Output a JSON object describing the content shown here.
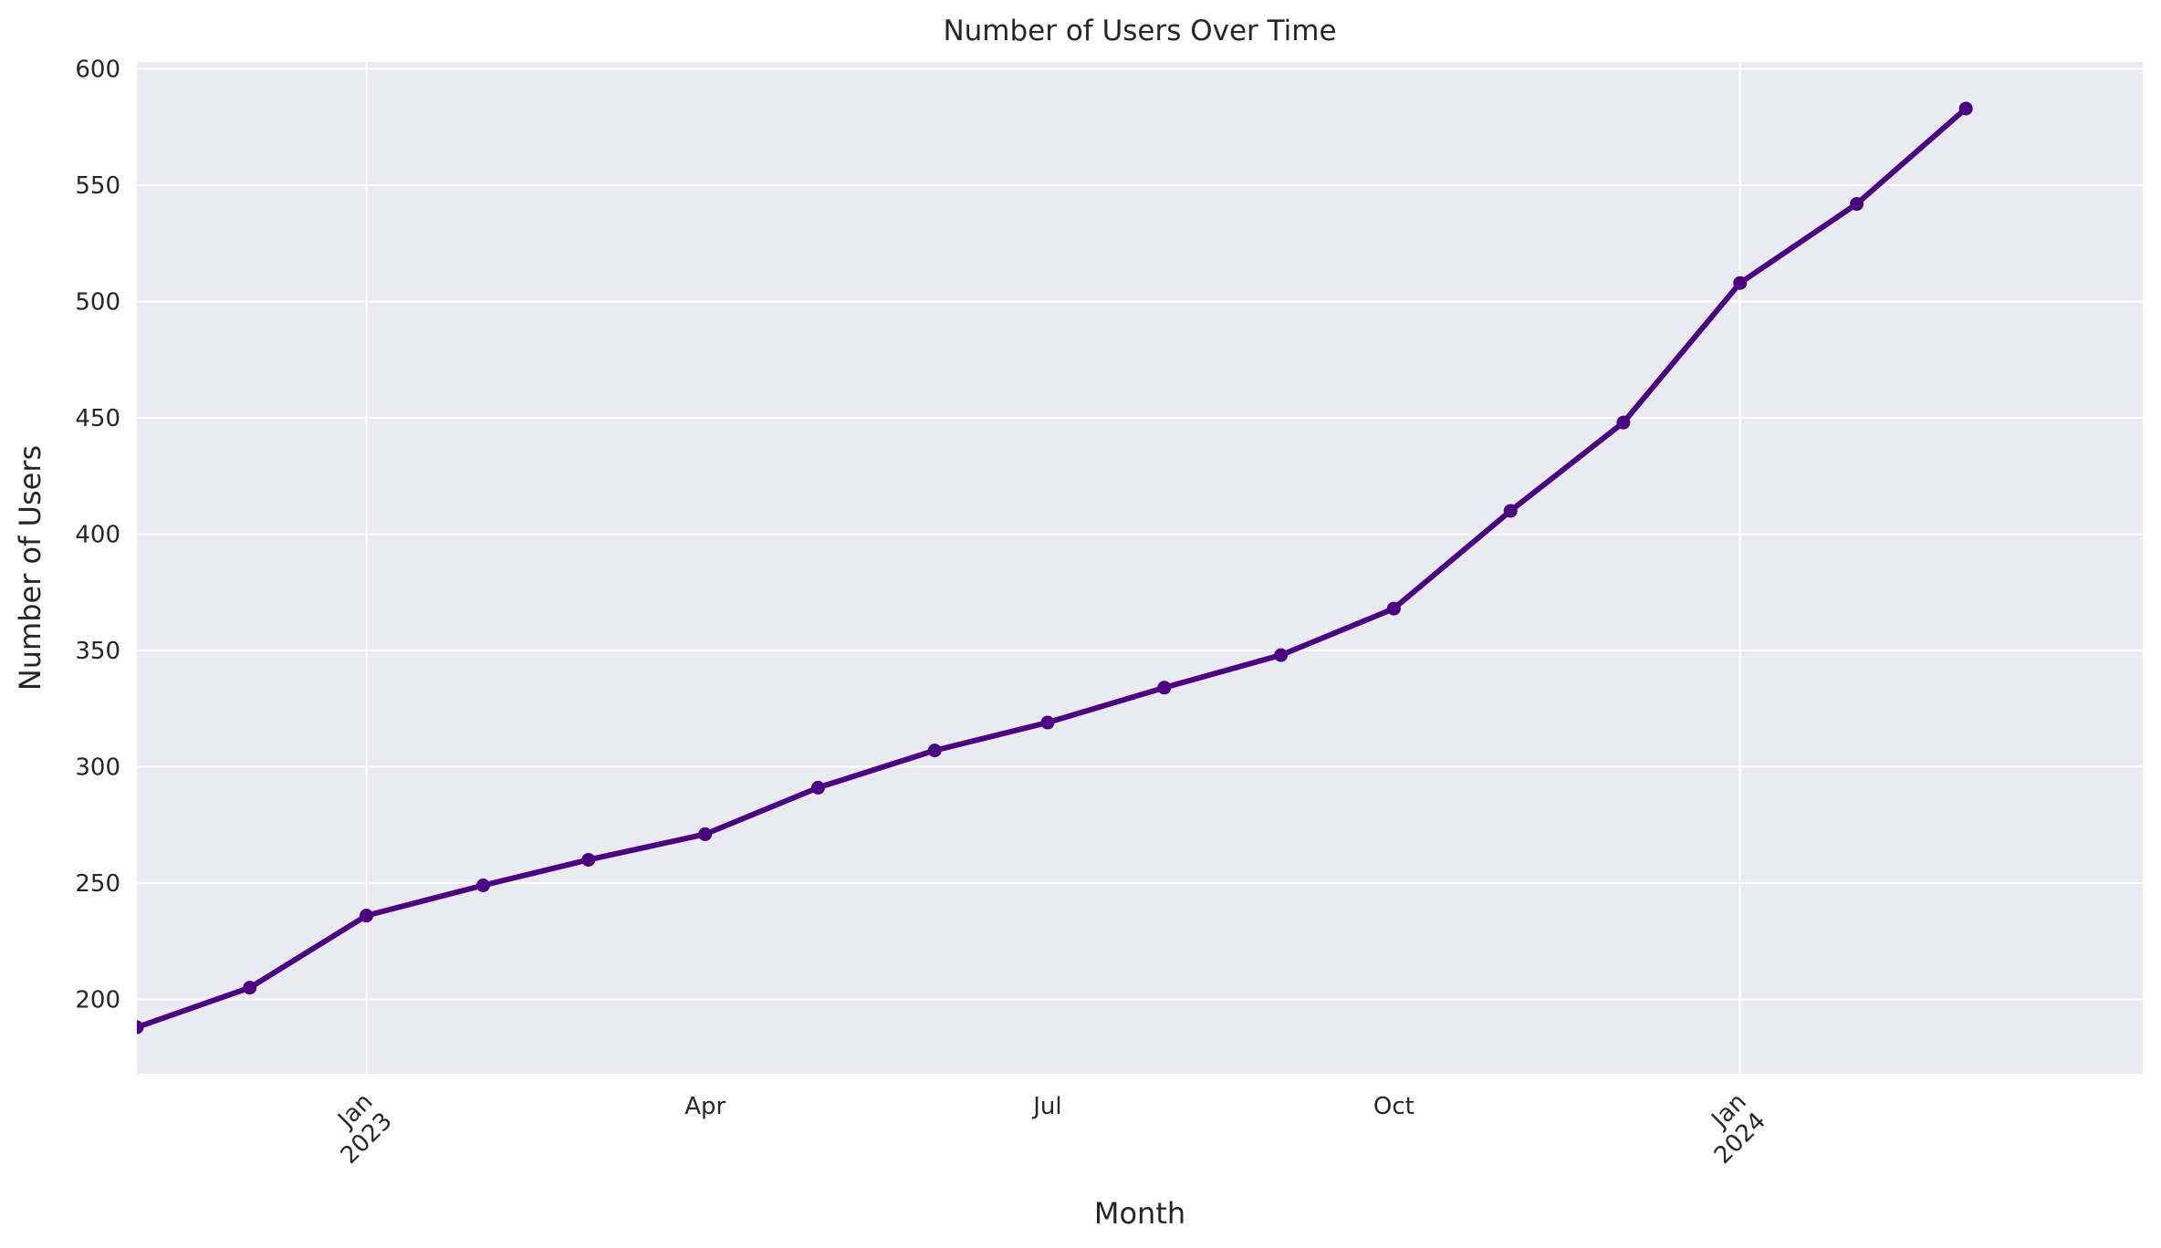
{
  "chart_data": {
    "type": "line",
    "title": "Number of Users Over Time",
    "xlabel": "Month",
    "ylabel": "Number of Users",
    "x": [
      "2022-11",
      "2022-12",
      "2023-01",
      "2023-02",
      "2023-03",
      "2023-04",
      "2023-05",
      "2023-06",
      "2023-07",
      "2023-08",
      "2023-09",
      "2023-10",
      "2023-11",
      "2023-12",
      "2024-01",
      "2024-02",
      "2024-03"
    ],
    "series": [
      {
        "values": [
          188,
          205,
          236,
          249,
          260,
          271,
          291,
          307,
          319,
          334,
          348,
          368,
          410,
          448,
          508,
          542,
          583
        ]
      }
    ],
    "xlim": [
      "2022-11-01",
      "2024-04-17"
    ],
    "ylim": [
      168,
      603
    ],
    "y_ticks": [
      200,
      250,
      300,
      350,
      400,
      450,
      500,
      550,
      600
    ],
    "x_ticks": [
      {
        "date": "2023-01-01",
        "label": "Jan\n2023",
        "major": true
      },
      {
        "date": "2023-04-01",
        "label": "Apr",
        "major": false
      },
      {
        "date": "2023-07-01",
        "label": "Jul",
        "major": false
      },
      {
        "date": "2023-10-01",
        "label": "Oct",
        "major": false
      },
      {
        "date": "2024-01-01",
        "label": "Jan\n2024",
        "major": true
      }
    ],
    "grid": true,
    "line_color": "#4b0082",
    "background_color": "#eaeaf2",
    "grid_color": "#ffffff",
    "marker": "circle"
  }
}
